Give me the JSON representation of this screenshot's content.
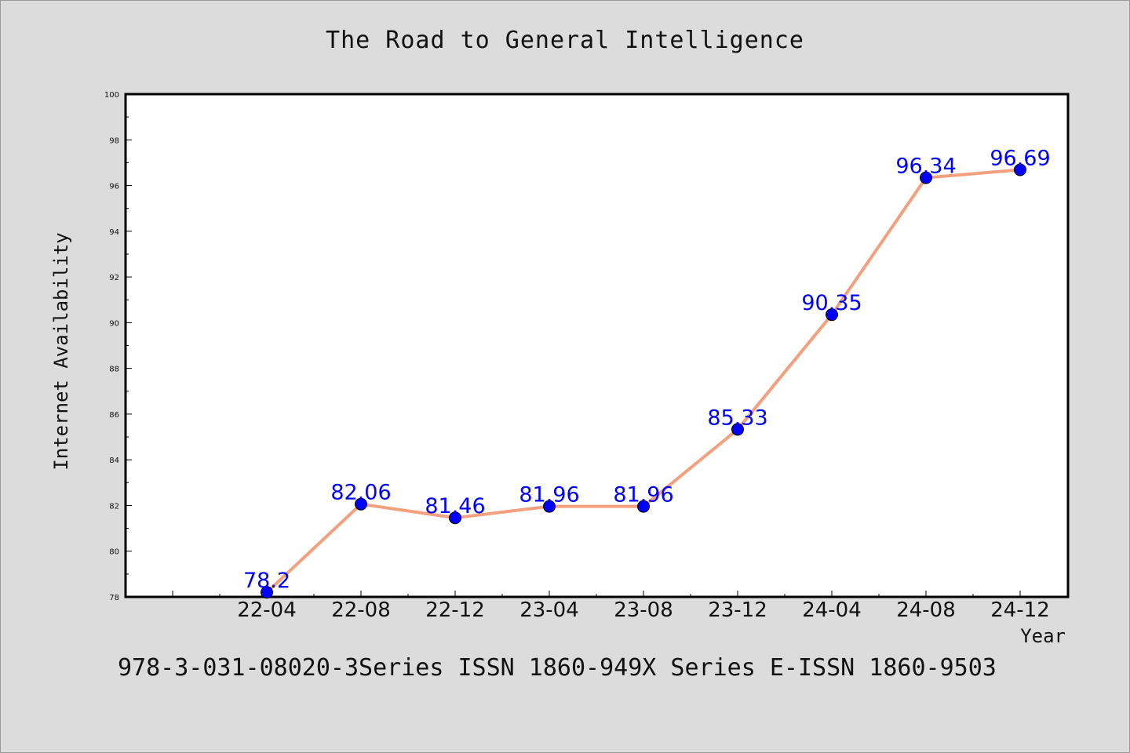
{
  "footer": "978-3-031-08020-3Series ISSN 1860-949X Series E-ISSN 1860-9503",
  "colors": {
    "background": "#dcdcdc",
    "plot_background": "#ffffff",
    "line": "#f4a07e",
    "marker": "#0000ff",
    "data_label": "#0000ff"
  },
  "chart_data": {
    "type": "line",
    "title": "The Road to General Intelligence",
    "xlabel": "Year",
    "ylabel": "Internet Availability",
    "categories": [
      "22-04",
      "22-08",
      "22-12",
      "23-04",
      "23-08",
      "23-12",
      "24-04",
      "24-08",
      "24-12"
    ],
    "series": [
      {
        "values": [
          78.2,
          82.06,
          81.46,
          81.96,
          81.96,
          85.33,
          90.35,
          96.34,
          96.69
        ],
        "labels": [
          "78.2",
          "82.06",
          "81.46",
          "81.96",
          "81.96",
          "85.33",
          "90.35",
          "96.34",
          "96.69"
        ]
      }
    ],
    "ylim": [
      78,
      100
    ],
    "y_ticks": [
      "78",
      "80",
      "82",
      "84",
      "86",
      "88",
      "90",
      "92",
      "94",
      "96",
      "98",
      "100"
    ],
    "grid": false,
    "legend": "none"
  }
}
